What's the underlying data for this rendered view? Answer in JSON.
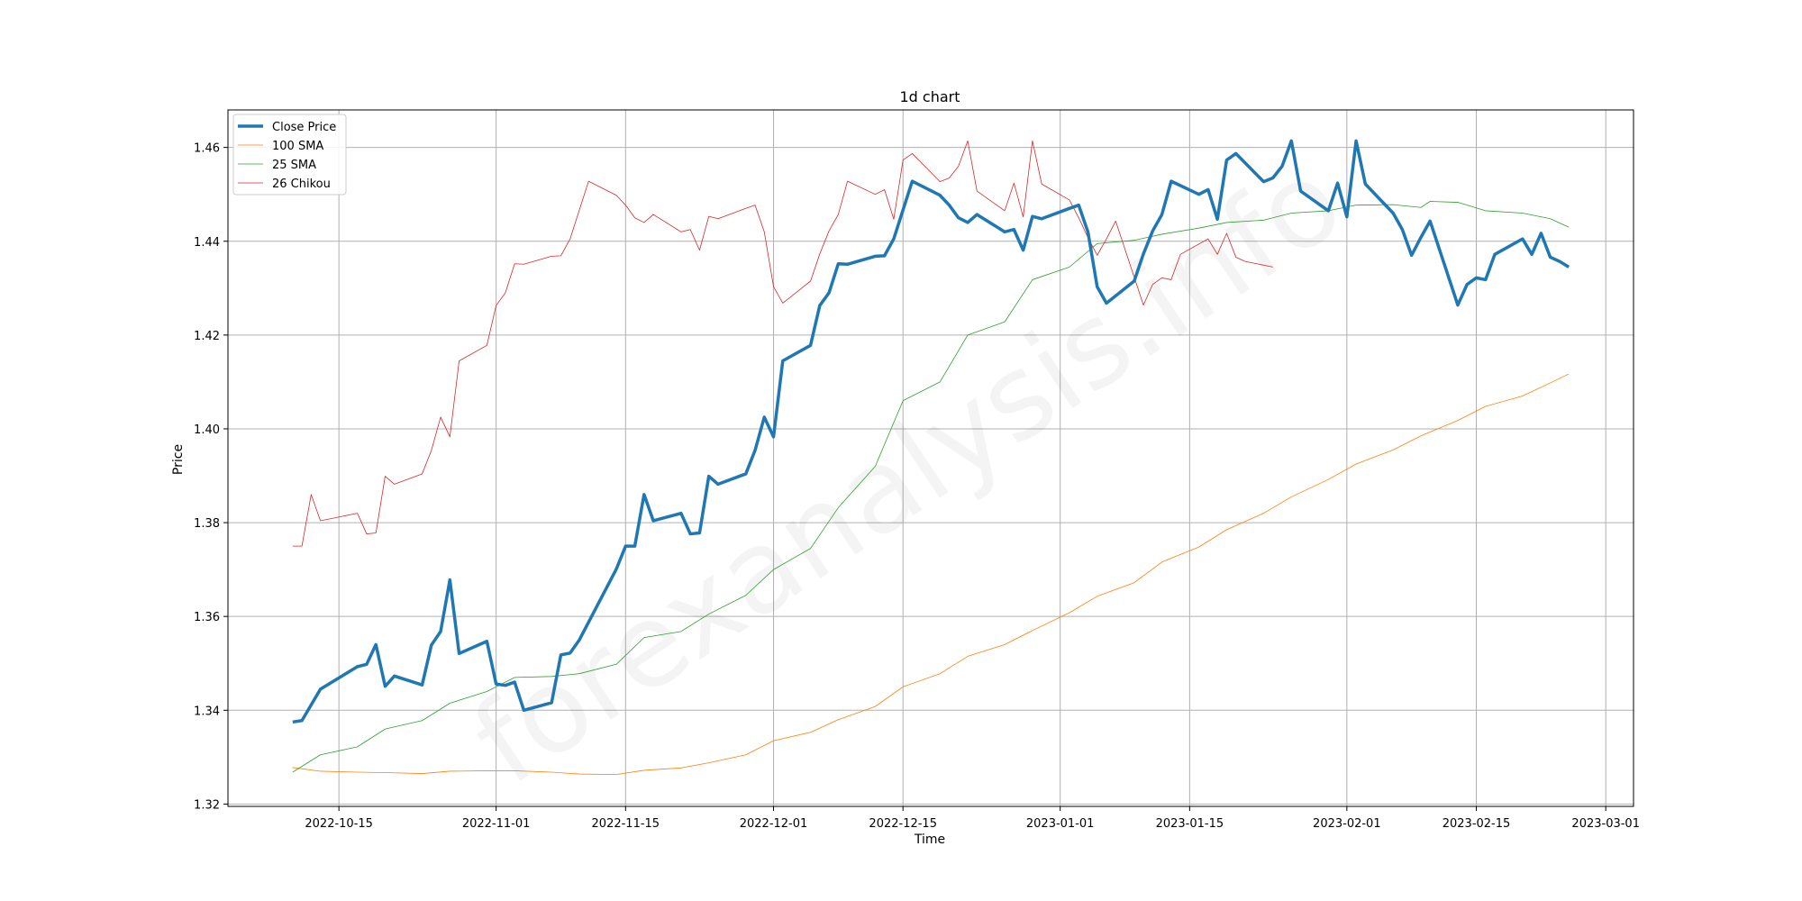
{
  "chart_data": {
    "type": "line",
    "title": "1d chart",
    "xlabel": "Time",
    "ylabel": "Price",
    "xlim": [
      "2022-10-03",
      "2023-03-04"
    ],
    "ylim": [
      1.3195,
      1.468
    ],
    "grid": true,
    "legend_position": "top-left",
    "watermark": "forexanalysis.info",
    "x_ticks": [
      "2022-10-15",
      "2022-11-01",
      "2022-11-15",
      "2022-12-01",
      "2022-12-15",
      "2023-01-01",
      "2023-01-15",
      "2023-02-01",
      "2023-02-15",
      "2023-03-01"
    ],
    "y_ticks": [
      1.32,
      1.34,
      1.36,
      1.38,
      1.4,
      1.42,
      1.44,
      1.46
    ],
    "series": [
      {
        "name": "Close Price",
        "color": "#1f77b4",
        "width": 3.5,
        "points": [
          [
            "2022-10-10",
            1.3375
          ],
          [
            "2022-10-11",
            1.3378
          ],
          [
            "2022-10-13",
            1.3445
          ],
          [
            "2022-10-17",
            1.3493
          ],
          [
            "2022-10-18",
            1.3498
          ],
          [
            "2022-10-19",
            1.354
          ],
          [
            "2022-10-20",
            1.3451
          ],
          [
            "2022-10-21",
            1.3473
          ],
          [
            "2022-10-24",
            1.3454
          ],
          [
            "2022-10-25",
            1.3539
          ],
          [
            "2022-10-26",
            1.3568
          ],
          [
            "2022-10-27",
            1.3678
          ],
          [
            "2022-10-28",
            1.3521
          ],
          [
            "2022-10-31",
            1.3547
          ],
          [
            "2022-11-01",
            1.3456
          ],
          [
            "2022-11-02",
            1.3453
          ],
          [
            "2022-11-03",
            1.346
          ],
          [
            "2022-11-04",
            1.34
          ],
          [
            "2022-11-07",
            1.3416
          ],
          [
            "2022-11-08",
            1.3518
          ],
          [
            "2022-11-09",
            1.3522
          ],
          [
            "2022-11-10",
            1.355
          ],
          [
            "2022-11-14",
            1.3701
          ],
          [
            "2022-11-15",
            1.375
          ],
          [
            "2022-11-16",
            1.375
          ],
          [
            "2022-11-17",
            1.386
          ],
          [
            "2022-11-18",
            1.3804
          ],
          [
            "2022-11-21",
            1.382
          ],
          [
            "2022-11-22",
            1.3776
          ],
          [
            "2022-11-23",
            1.3778
          ],
          [
            "2022-11-24",
            1.3899
          ],
          [
            "2022-11-25",
            1.3882
          ],
          [
            "2022-11-28",
            1.3904
          ],
          [
            "2022-11-29",
            1.3954
          ],
          [
            "2022-11-30",
            1.4025
          ],
          [
            "2022-12-01",
            1.3983
          ],
          [
            "2022-12-02",
            1.4145
          ],
          [
            "2022-12-05",
            1.4178
          ],
          [
            "2022-12-06",
            1.4263
          ],
          [
            "2022-12-07",
            1.429
          ],
          [
            "2022-12-08",
            1.4352
          ],
          [
            "2022-12-09",
            1.4351
          ],
          [
            "2022-12-12",
            1.4368
          ],
          [
            "2022-12-13",
            1.4369
          ],
          [
            "2022-12-14",
            1.4405
          ],
          [
            "2022-12-16",
            1.4528
          ],
          [
            "2022-12-19",
            1.4498
          ],
          [
            "2022-12-20",
            1.4477
          ],
          [
            "2022-12-21",
            1.445
          ],
          [
            "2022-12-22",
            1.444
          ],
          [
            "2022-12-23",
            1.4457
          ],
          [
            "2022-12-26",
            1.442
          ],
          [
            "2022-12-27",
            1.4425
          ],
          [
            "2022-12-28",
            1.4381
          ],
          [
            "2022-12-29",
            1.4453
          ],
          [
            "2022-12-30",
            1.4448
          ],
          [
            "2023-01-02",
            1.447
          ],
          [
            "2023-01-03",
            1.4477
          ],
          [
            "2023-01-04",
            1.442
          ],
          [
            "2023-01-05",
            1.4303
          ],
          [
            "2023-01-06",
            1.4268
          ],
          [
            "2023-01-09",
            1.4315
          ],
          [
            "2023-01-10",
            1.4373
          ],
          [
            "2023-01-11",
            1.4422
          ],
          [
            "2023-01-12",
            1.4457
          ],
          [
            "2023-01-13",
            1.4528
          ],
          [
            "2023-01-16",
            1.45
          ],
          [
            "2023-01-17",
            1.451
          ],
          [
            "2023-01-18",
            1.4447
          ],
          [
            "2023-01-19",
            1.4573
          ],
          [
            "2023-01-20",
            1.4587
          ],
          [
            "2023-01-23",
            1.4527
          ],
          [
            "2023-01-24",
            1.4535
          ],
          [
            "2023-01-25",
            1.456
          ],
          [
            "2023-01-26",
            1.4614
          ],
          [
            "2023-01-27",
            1.4507
          ],
          [
            "2023-01-30",
            1.4465
          ],
          [
            "2023-01-31",
            1.4524
          ],
          [
            "2023-02-01",
            1.4452
          ],
          [
            "2023-02-02",
            1.4614
          ],
          [
            "2023-02-03",
            1.4522
          ],
          [
            "2023-02-06",
            1.446
          ],
          [
            "2023-02-07",
            1.4425
          ],
          [
            "2023-02-08",
            1.437
          ],
          [
            "2023-02-09",
            1.4408
          ],
          [
            "2023-02-10",
            1.4443
          ],
          [
            "2023-02-13",
            1.4264
          ],
          [
            "2023-02-14",
            1.4308
          ],
          [
            "2023-02-15",
            1.4322
          ],
          [
            "2023-02-16",
            1.4318
          ],
          [
            "2023-02-17",
            1.4372
          ],
          [
            "2023-02-20",
            1.4405
          ],
          [
            "2023-02-21",
            1.4372
          ],
          [
            "2023-02-22",
            1.4417
          ],
          [
            "2023-02-23",
            1.4366
          ],
          [
            "2023-02-24",
            1.4357
          ],
          [
            "2023-02-25",
            1.4345
          ]
        ]
      },
      {
        "name": "100 SMA",
        "color": "#ff7f0e",
        "width": 0.8,
        "points": [
          [
            "2022-10-10",
            1.3278
          ],
          [
            "2022-10-13",
            1.327
          ],
          [
            "2022-10-17",
            1.3268
          ],
          [
            "2022-10-20",
            1.3267
          ],
          [
            "2022-10-24",
            1.3265
          ],
          [
            "2022-10-27",
            1.327
          ],
          [
            "2022-10-31",
            1.3271
          ],
          [
            "2022-11-03",
            1.3271
          ],
          [
            "2022-11-07",
            1.3268
          ],
          [
            "2022-11-10",
            1.3264
          ],
          [
            "2022-11-14",
            1.3263
          ],
          [
            "2022-11-17",
            1.3272
          ],
          [
            "2022-11-21",
            1.3277
          ],
          [
            "2022-11-24",
            1.3288
          ],
          [
            "2022-11-28",
            1.3305
          ],
          [
            "2022-12-01",
            1.3335
          ],
          [
            "2022-12-05",
            1.3353
          ],
          [
            "2022-12-08",
            1.338
          ],
          [
            "2022-12-12",
            1.3408
          ],
          [
            "2022-12-15",
            1.345
          ],
          [
            "2022-12-19",
            1.3478
          ],
          [
            "2022-12-22",
            1.3515
          ],
          [
            "2022-12-26",
            1.354
          ],
          [
            "2022-12-29",
            1.357
          ],
          [
            "2023-01-02",
            1.3608
          ],
          [
            "2023-01-05",
            1.3643
          ],
          [
            "2023-01-09",
            1.3672
          ],
          [
            "2023-01-12",
            1.3716
          ],
          [
            "2023-01-16",
            1.3748
          ],
          [
            "2023-01-19",
            1.3785
          ],
          [
            "2023-01-23",
            1.382
          ],
          [
            "2023-01-26",
            1.3855
          ],
          [
            "2023-01-30",
            1.3892
          ],
          [
            "2023-02-02",
            1.3925
          ],
          [
            "2023-02-06",
            1.3955
          ],
          [
            "2023-02-09",
            1.3985
          ],
          [
            "2023-02-13",
            1.4018
          ],
          [
            "2023-02-16",
            1.4048
          ],
          [
            "2023-02-20",
            1.407
          ],
          [
            "2023-02-23",
            1.4098
          ],
          [
            "2023-02-25",
            1.4117
          ]
        ]
      },
      {
        "name": "25 SMA",
        "color": "#2ca02c",
        "width": 0.8,
        "points": [
          [
            "2022-10-10",
            1.3268
          ],
          [
            "2022-10-13",
            1.3305
          ],
          [
            "2022-10-17",
            1.3322
          ],
          [
            "2022-10-20",
            1.336
          ],
          [
            "2022-10-24",
            1.3378
          ],
          [
            "2022-10-27",
            1.3415
          ],
          [
            "2022-10-31",
            1.344
          ],
          [
            "2022-11-03",
            1.347
          ],
          [
            "2022-11-07",
            1.3472
          ],
          [
            "2022-11-10",
            1.3478
          ],
          [
            "2022-11-14",
            1.3498
          ],
          [
            "2022-11-17",
            1.3555
          ],
          [
            "2022-11-21",
            1.3568
          ],
          [
            "2022-11-24",
            1.3605
          ],
          [
            "2022-11-28",
            1.3645
          ],
          [
            "2022-12-01",
            1.37
          ],
          [
            "2022-12-05",
            1.3745
          ],
          [
            "2022-12-08",
            1.3832
          ],
          [
            "2022-12-12",
            1.392
          ],
          [
            "2022-12-15",
            1.406
          ],
          [
            "2022-12-19",
            1.41
          ],
          [
            "2022-12-22",
            1.42
          ],
          [
            "2022-12-26",
            1.4228
          ],
          [
            "2022-12-29",
            1.4318
          ],
          [
            "2023-01-02",
            1.4345
          ],
          [
            "2023-01-05",
            1.4395
          ],
          [
            "2023-01-09",
            1.4402
          ],
          [
            "2023-01-12",
            1.4415
          ],
          [
            "2023-01-16",
            1.4428
          ],
          [
            "2023-01-19",
            1.444
          ],
          [
            "2023-01-23",
            1.4445
          ],
          [
            "2023-01-26",
            1.446
          ],
          [
            "2023-01-30",
            1.4465
          ],
          [
            "2023-02-02",
            1.4477
          ],
          [
            "2023-02-06",
            1.4478
          ],
          [
            "2023-02-09",
            1.4472
          ],
          [
            "2023-02-10",
            1.4485
          ],
          [
            "2023-02-13",
            1.4483
          ],
          [
            "2023-02-16",
            1.4465
          ],
          [
            "2023-02-20",
            1.446
          ],
          [
            "2023-02-23",
            1.4448
          ],
          [
            "2023-02-25",
            1.443
          ]
        ]
      },
      {
        "name": "26 Chikou",
        "color": "#d62728",
        "width": 0.8,
        "points": [
          [
            "2022-10-10",
            1.375
          ],
          [
            "2022-10-11",
            1.375
          ],
          [
            "2022-10-12",
            1.386
          ],
          [
            "2022-10-13",
            1.3804
          ],
          [
            "2022-10-17",
            1.382
          ],
          [
            "2022-10-18",
            1.3776
          ],
          [
            "2022-10-19",
            1.3778
          ],
          [
            "2022-10-20",
            1.3899
          ],
          [
            "2022-10-21",
            1.3882
          ],
          [
            "2022-10-24",
            1.3904
          ],
          [
            "2022-10-25",
            1.3954
          ],
          [
            "2022-10-26",
            1.4025
          ],
          [
            "2022-10-27",
            1.3983
          ],
          [
            "2022-10-28",
            1.4145
          ],
          [
            "2022-10-31",
            1.4178
          ],
          [
            "2022-11-01",
            1.4263
          ],
          [
            "2022-11-02",
            1.429
          ],
          [
            "2022-11-03",
            1.4352
          ],
          [
            "2022-11-04",
            1.4351
          ],
          [
            "2022-11-07",
            1.4368
          ],
          [
            "2022-11-08",
            1.4369
          ],
          [
            "2022-11-09",
            1.4405
          ],
          [
            "2022-11-11",
            1.4528
          ],
          [
            "2022-11-14",
            1.4498
          ],
          [
            "2022-11-15",
            1.4477
          ],
          [
            "2022-11-16",
            1.445
          ],
          [
            "2022-11-17",
            1.444
          ],
          [
            "2022-11-18",
            1.4457
          ],
          [
            "2022-11-21",
            1.442
          ],
          [
            "2022-11-22",
            1.4425
          ],
          [
            "2022-11-23",
            1.4381
          ],
          [
            "2022-11-24",
            1.4453
          ],
          [
            "2022-11-25",
            1.4448
          ],
          [
            "2022-11-28",
            1.447
          ],
          [
            "2022-11-29",
            1.4477
          ],
          [
            "2022-11-30",
            1.442
          ],
          [
            "2022-12-01",
            1.4303
          ],
          [
            "2022-12-02",
            1.4268
          ],
          [
            "2022-12-05",
            1.4315
          ],
          [
            "2022-12-06",
            1.4373
          ],
          [
            "2022-12-07",
            1.4422
          ],
          [
            "2022-12-08",
            1.4457
          ],
          [
            "2022-12-09",
            1.4528
          ],
          [
            "2022-12-12",
            1.45
          ],
          [
            "2022-12-13",
            1.451
          ],
          [
            "2022-12-14",
            1.4447
          ],
          [
            "2022-12-15",
            1.4573
          ],
          [
            "2022-12-16",
            1.4587
          ],
          [
            "2022-12-19",
            1.4527
          ],
          [
            "2022-12-20",
            1.4535
          ],
          [
            "2022-12-21",
            1.456
          ],
          [
            "2022-12-22",
            1.4614
          ],
          [
            "2022-12-23",
            1.4507
          ],
          [
            "2022-12-26",
            1.4465
          ],
          [
            "2022-12-27",
            1.4524
          ],
          [
            "2022-12-28",
            1.4452
          ],
          [
            "2022-12-29",
            1.4614
          ],
          [
            "2022-12-30",
            1.4522
          ],
          [
            "2023-01-02",
            1.4488
          ],
          [
            "2023-01-03",
            1.445
          ],
          [
            "2023-01-04",
            1.4408
          ],
          [
            "2023-01-05",
            1.437
          ],
          [
            "2023-01-06",
            1.4405
          ],
          [
            "2023-01-07",
            1.4443
          ],
          [
            "2023-01-10",
            1.4264
          ],
          [
            "2023-01-11",
            1.4308
          ],
          [
            "2023-01-12",
            1.4322
          ],
          [
            "2023-01-13",
            1.4318
          ],
          [
            "2023-01-14",
            1.4372
          ],
          [
            "2023-01-17",
            1.4405
          ],
          [
            "2023-01-18",
            1.4372
          ],
          [
            "2023-01-19",
            1.4417
          ],
          [
            "2023-01-20",
            1.4366
          ],
          [
            "2023-01-21",
            1.4357
          ],
          [
            "2023-01-24",
            1.4345
          ]
        ]
      }
    ]
  }
}
